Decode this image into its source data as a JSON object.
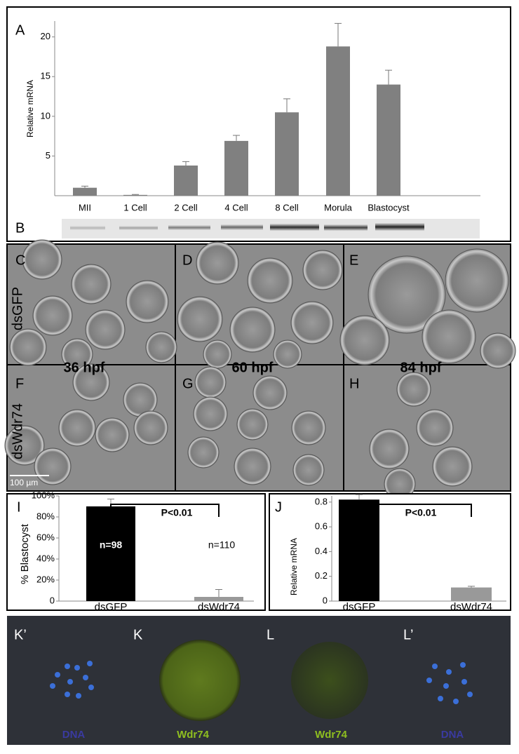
{
  "panels": {
    "a": "A",
    "b": "B",
    "c": "C",
    "d": "D",
    "e": "E",
    "f": "F",
    "g": "G",
    "h": "H",
    "i": "I",
    "j": "J",
    "k_prime": "K’",
    "k": "K",
    "l": "L",
    "l_prime": "L’"
  },
  "row_labels": [
    "dsGFP",
    "dsWdr74"
  ],
  "time_labels": [
    "36 hpf",
    "60 hpf",
    "84 hpf"
  ],
  "scale_bar": "100 µm",
  "stain_labels": [
    "DNA",
    "Wdr74",
    "Wdr74",
    "DNA"
  ],
  "chart_data": [
    {
      "type": "bar",
      "ylabel": "Relative mRNA",
      "categories": [
        "MII",
        "1 Cell",
        "2 Cell",
        "4 Cell",
        "8 Cell",
        "Morula",
        "Blastocyst"
      ],
      "values": [
        1.0,
        0.1,
        3.8,
        6.9,
        10.5,
        18.8,
        14.0
      ],
      "errors": [
        0.2,
        0.05,
        0.5,
        0.7,
        1.7,
        2.9,
        1.8
      ],
      "color": "#808080",
      "ylim": [
        0,
        22
      ],
      "yticks": [
        5,
        10,
        15,
        20
      ]
    },
    {
      "type": "bar",
      "ylabel": "% Blastocyst",
      "categories": [
        "dsGFP",
        "dsWdr74"
      ],
      "values": [
        90,
        4
      ],
      "errors": [
        7,
        7
      ],
      "colors": [
        "#000000",
        "#999999"
      ],
      "ylim": [
        0,
        100
      ],
      "yticks": [
        0,
        {
          "value": 20,
          "label": "20%"
        },
        {
          "value": 40,
          "label": "40%"
        },
        {
          "value": 60,
          "label": "60%"
        },
        {
          "value": 80,
          "label": "80%"
        },
        {
          "value": 100,
          "label": "100%"
        }
      ],
      "annotations": [
        "P<0.01",
        "n=98",
        "n=110"
      ]
    },
    {
      "type": "bar",
      "ylabel": "Relative mRNA",
      "categories": [
        "dsGFP",
        "dsWdr74"
      ],
      "values": [
        0.82,
        0.11
      ],
      "errors": [
        0.04,
        0.01
      ],
      "colors": [
        "#000000",
        "#999999"
      ],
      "ylim": [
        0,
        0.85
      ],
      "yticks": [
        0,
        0.2,
        0.4,
        0.6,
        0.8
      ],
      "annotations": [
        "P<0.01"
      ]
    }
  ]
}
